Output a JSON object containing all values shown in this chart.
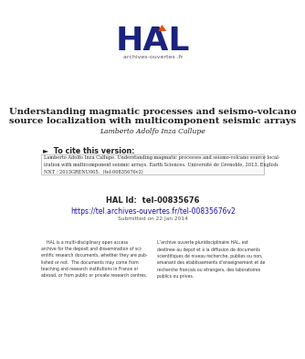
{
  "bg_color": "#ffffff",
  "logo_subtext": "archives-ouvertes .fr",
  "title_line1": "Understanding magmatic processes and seismo-volcano",
  "title_line2": "source localization with multicomponent seismic arrays",
  "author": "Lamberto Adolfo Inza Callupe",
  "section_header": "►  To cite this version:",
  "citation_text": "Lamberto Adolfo Inza Callupe. Understanding magmatic processes and seismo-volcano source local-\nization with multicomponent seismic arrays. Earth Sciences. Université de Grenoble, 2013. English.\nNNT : 2013GRENU065.  ⟨tel-00835676v2⟩",
  "hal_id": "HAL Id:  tel-00835676",
  "hal_url": "https://tel.archives-ouvertes.fr/tel-00835676v2",
  "submitted": "Submitted on 22 Jan 2014",
  "left_col": "    HAL is a multi-disciplinary open access\narchive for the deposit and dissemination of sci-\nentific research documents, whether they are pub-\nlished or not.  The documents may come from\nteaching and research institutions in France or\nabroad, or from public or private research centres.",
  "right_col": "L’archive ouverte pluridisciplinaire HAL, est\ndestinee au depot et à la diffusion de documents\nscientifiques de niveau recherche, publies ou non,\nemanant des etablissements d’enseignement et de\nrecherche francais ou etrangers, des laboratoires\npublics ou prives.",
  "hal_color": "#1a237e",
  "url_color": "#1a0dab",
  "orange_color": "#e84e0f",
  "text_color": "#222222",
  "gray_color": "#555555",
  "cite_border": "#bbbbbb",
  "cite_bg": "#f9f9f9"
}
